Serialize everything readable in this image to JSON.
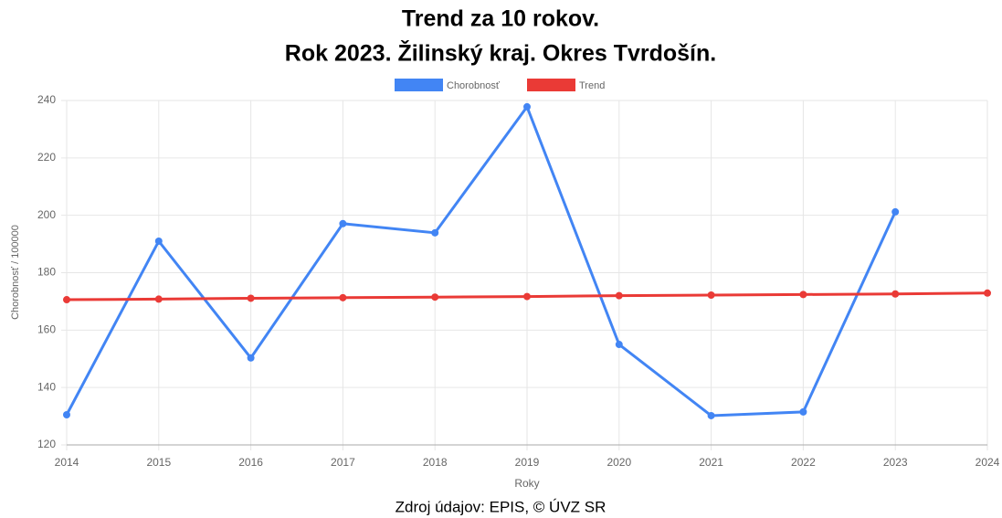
{
  "chart_data": {
    "type": "line",
    "title": [
      "Trend za 10 rokov.",
      "Rok 2023. Žilinský kraj. Okres Tvrdošín."
    ],
    "x_label": "Roky",
    "y_label": "Chorobnosť / 100000",
    "source": "Zdroj údajov: EPIS, © ÚVZ SR",
    "categories": [
      "2014",
      "2015",
      "2016",
      "2017",
      "2018",
      "2019",
      "2020",
      "2021",
      "2022",
      "2023",
      "2024"
    ],
    "series": [
      {
        "name": "Chorobnosť",
        "color": "#4285f4",
        "values": [
          130.5,
          191.0,
          150.3,
          197.1,
          193.9,
          237.8,
          155.0,
          130.2,
          131.5,
          201.2,
          null
        ]
      },
      {
        "name": "Trend",
        "color": "#ea3a36",
        "values": [
          170.6,
          170.8,
          171.1,
          171.3,
          171.5,
          171.7,
          172.0,
          172.2,
          172.4,
          172.6,
          172.9
        ]
      }
    ],
    "ylim": [
      120,
      240
    ],
    "yticks": [
      120,
      140,
      160,
      180,
      200,
      220,
      240
    ],
    "grid": true,
    "legend": "top"
  }
}
